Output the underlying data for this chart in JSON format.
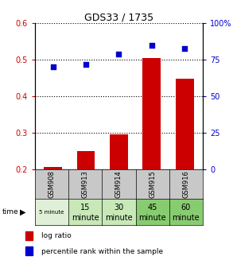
{
  "title": "GDS33 / 1735",
  "samples": [
    "GSM908",
    "GSM913",
    "GSM914",
    "GSM915",
    "GSM916"
  ],
  "time_labels_row1": [
    "5 minute",
    "15",
    "30",
    "45",
    "60"
  ],
  "time_labels_row2": [
    "",
    "minute",
    "minute",
    "minute",
    "minute"
  ],
  "log_ratio": [
    0.205,
    0.25,
    0.295,
    0.505,
    0.447
  ],
  "percentile_rank_pct": [
    70,
    72,
    79,
    85,
    83
  ],
  "ylim_left": [
    0.2,
    0.6
  ],
  "ylim_right": [
    0,
    100
  ],
  "yticks_left": [
    0.2,
    0.3,
    0.4,
    0.5,
    0.6
  ],
  "yticks_right": [
    0,
    25,
    50,
    75,
    100
  ],
  "ytick_labels_left": [
    "0.2",
    "0.3",
    "0.4",
    "0.5",
    "0.6"
  ],
  "ytick_labels_right": [
    "0",
    "25",
    "50",
    "75",
    "100%"
  ],
  "bar_color": "#cc0000",
  "dot_color": "#0000cc",
  "grid_color": "#000000",
  "left_tick_color": "#cc0000",
  "right_tick_color": "#0000cc",
  "bg_color": "#ffffff",
  "sample_bg": "#c8c8c8",
  "time_colors": [
    "#e0f0d8",
    "#c8e8b8",
    "#c8e8b8",
    "#88cc70",
    "#88cc70"
  ]
}
